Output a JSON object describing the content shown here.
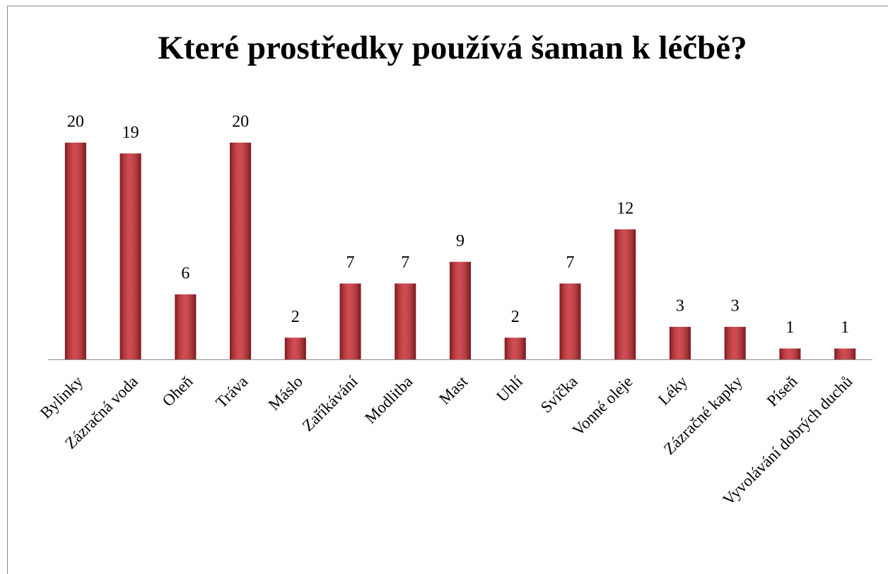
{
  "chart_data": {
    "type": "bar",
    "title": "Které prostředky používá šaman k léčbě?",
    "categories": [
      "Bylinky",
      "Zázračná voda",
      "Oheň",
      "Tráva",
      "Máslo",
      "Zaříkávání",
      "Modlitba",
      "Mast",
      "Uhlí",
      "Svíčka",
      "Vonné oleje",
      "Léky",
      "Zázračné kapky",
      "Píseň",
      "Vyvolávání dobrých duchů"
    ],
    "values": [
      20,
      19,
      6,
      20,
      2,
      7,
      7,
      9,
      2,
      7,
      12,
      3,
      3,
      1,
      1
    ],
    "color": "#c8242b"
  }
}
